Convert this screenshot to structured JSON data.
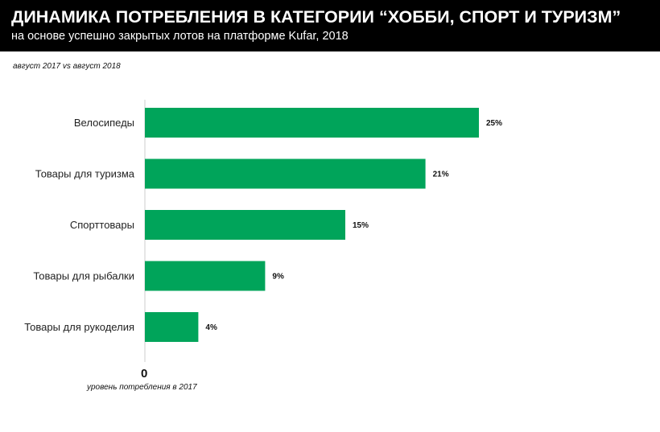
{
  "header": {
    "title": "ДИНАМИКА ПОТРЕБЛЕНИЯ В КАТЕГОРИИ “ХОББИ, СПОРТ И ТУРИЗМ”",
    "subtitle": "на основе успешно закрытых лотов на платформе Kufar, 2018"
  },
  "period_note": "август 2017 vs август 2018",
  "colors": {
    "header_bg": "#000000",
    "bar": "#00A45A",
    "axis": "#cccccc"
  },
  "chart_data": {
    "type": "bar",
    "orientation": "horizontal",
    "categories": [
      "Велосипеды",
      "Товары для туризма",
      "Спорттовары",
      "Товары для рыбалки",
      "Товары для рукоделия"
    ],
    "values": [
      25,
      21,
      15,
      9,
      4
    ],
    "value_labels": [
      "25%",
      "21%",
      "15%",
      "9%",
      "4%"
    ],
    "xlim": [
      0,
      25
    ],
    "zero_label": "0",
    "baseline_note": "уровень потребления в 2017",
    "grid": false,
    "legend": "none"
  }
}
